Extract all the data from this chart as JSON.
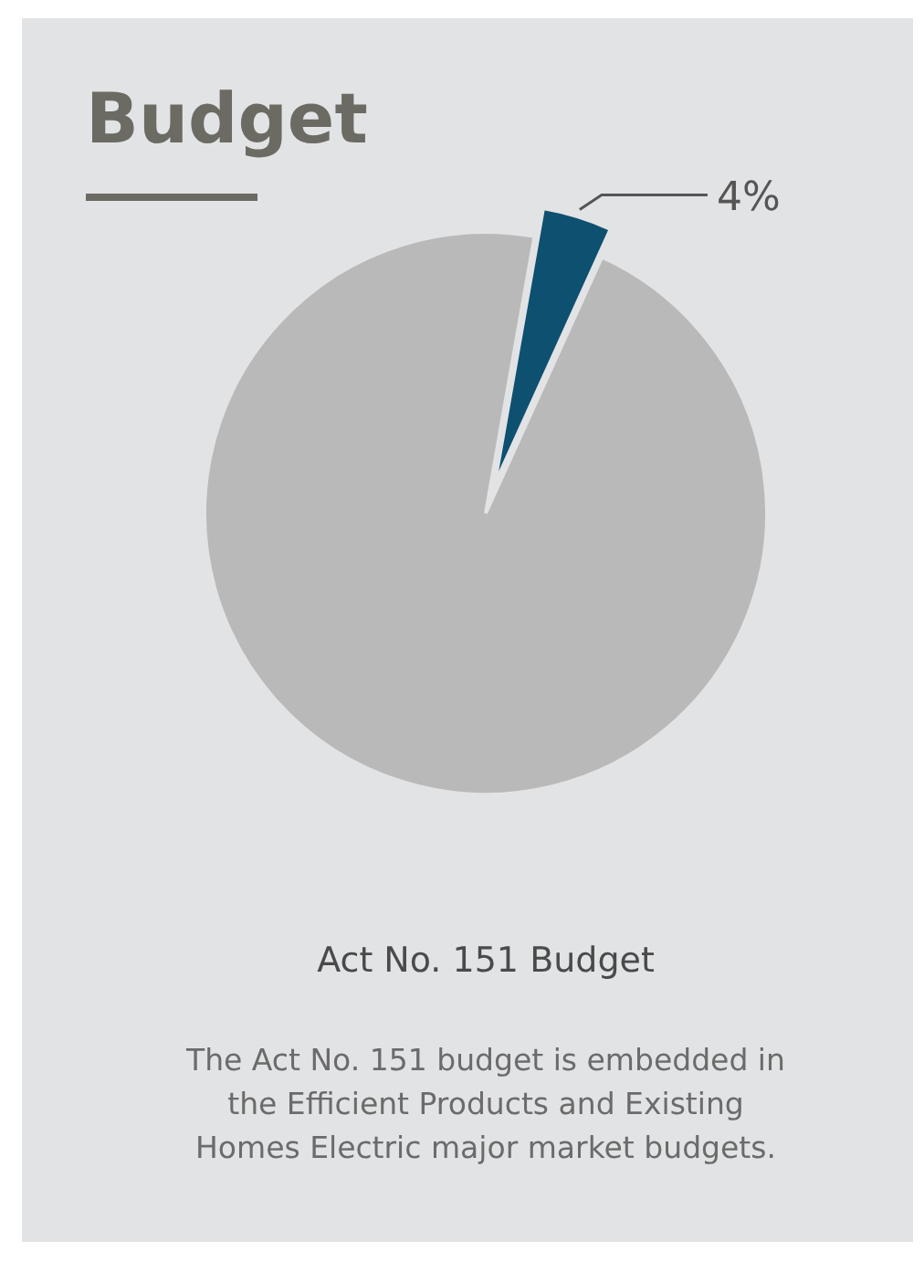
{
  "chart_data": {
    "type": "pie",
    "title": "Budget",
    "subtitle": "Act No. 151 Budget",
    "categories": [
      null,
      null
    ],
    "values": [
      4,
      96
    ],
    "colors": [
      "#0e5070",
      "#b9b9b9"
    ],
    "value_labels": [
      "4%",
      null
    ],
    "annotations": [
      "The Act No. 151 budget is embedded in the Efficient Products and Existing Homes Electric major market budgets."
    ]
  }
}
